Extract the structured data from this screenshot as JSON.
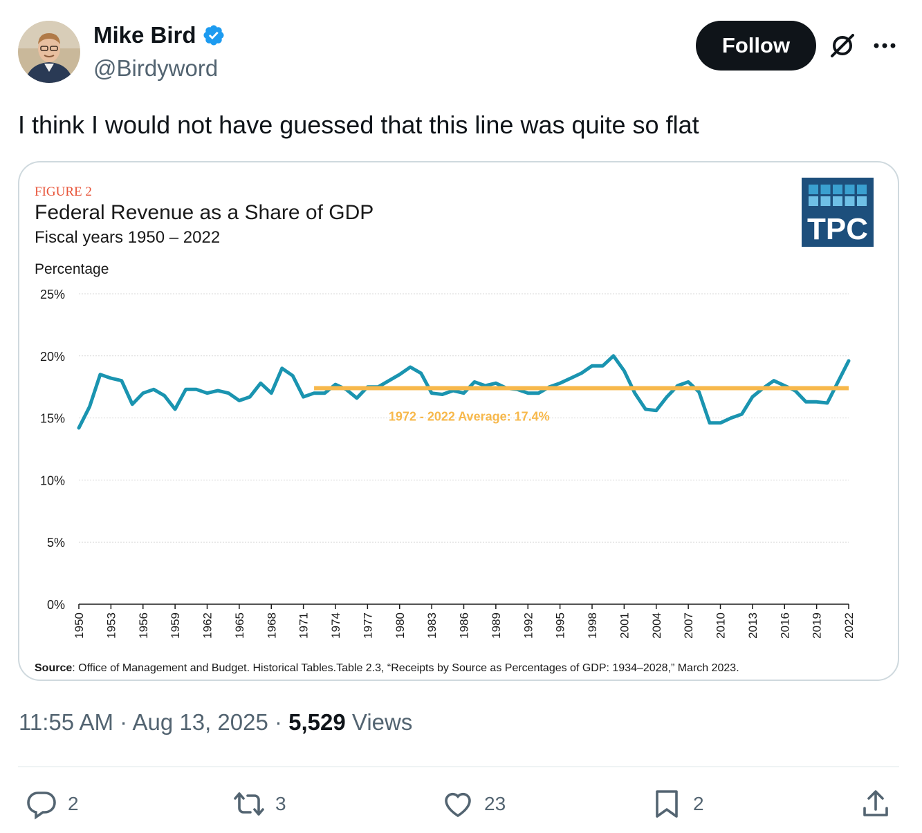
{
  "author": {
    "name": "Mike Bird",
    "handle": "@Birdyword"
  },
  "follow_label": "Follow",
  "tweet_text": "I think I would not have guessed that this line was quite so flat",
  "chart_data": {
    "type": "line",
    "figure_label": "FIGURE 2",
    "title": "Federal Revenue as a Share of GDP",
    "subtitle": "Fiscal years 1950 – 2022",
    "ylabel": "Percentage",
    "logo_text": "TPC",
    "ylim": [
      0,
      25
    ],
    "y_ticks": [
      "0%",
      "5%",
      "10%",
      "15%",
      "20%",
      "25%"
    ],
    "x_ticks": [
      "1950",
      "1953",
      "1956",
      "1959",
      "1962",
      "1965",
      "1968",
      "1971",
      "1974",
      "1977",
      "1980",
      "1983",
      "1986",
      "1989",
      "1992",
      "1995",
      "1998",
      "2001",
      "2004",
      "2007",
      "2010",
      "2013",
      "2016",
      "2019",
      "2022"
    ],
    "x": [
      1950,
      1951,
      1952,
      1953,
      1954,
      1955,
      1956,
      1957,
      1958,
      1959,
      1960,
      1961,
      1962,
      1963,
      1964,
      1965,
      1966,
      1967,
      1968,
      1969,
      1970,
      1971,
      1972,
      1973,
      1974,
      1975,
      1976,
      1977,
      1978,
      1979,
      1980,
      1981,
      1982,
      1983,
      1984,
      1985,
      1986,
      1987,
      1988,
      1989,
      1990,
      1991,
      1992,
      1993,
      1994,
      1995,
      1996,
      1997,
      1998,
      1999,
      2000,
      2001,
      2002,
      2003,
      2004,
      2005,
      2006,
      2007,
      2008,
      2009,
      2010,
      2011,
      2012,
      2013,
      2014,
      2015,
      2016,
      2017,
      2018,
      2019,
      2020,
      2021,
      2022
    ],
    "series": [
      {
        "values": [
          14.2,
          15.9,
          18.5,
          18.2,
          18.0,
          16.1,
          17.0,
          17.3,
          16.8,
          15.7,
          17.3,
          17.3,
          17.0,
          17.2,
          17.0,
          16.4,
          16.7,
          17.8,
          17.0,
          19.0,
          18.4,
          16.7,
          17.0,
          17.0,
          17.7,
          17.3,
          16.6,
          17.5,
          17.5,
          18.0,
          18.5,
          19.1,
          18.6,
          17.0,
          16.9,
          17.2,
          17.0,
          17.9,
          17.6,
          17.8,
          17.4,
          17.3,
          17.0,
          17.0,
          17.5,
          17.8,
          18.2,
          18.6,
          19.2,
          19.2,
          20.0,
          18.8,
          17.0,
          15.7,
          15.6,
          16.7,
          17.6,
          17.9,
          17.1,
          14.6,
          14.6,
          15.0,
          15.3,
          16.7,
          17.4,
          18.0,
          17.6,
          17.2,
          16.3,
          16.3,
          16.2,
          17.9,
          19.6
        ]
      }
    ],
    "reference_line": {
      "label": "1972 - 2022 Average: 17.4%",
      "value": 17.4,
      "x_start": 1972,
      "x_end": 2022
    },
    "source_label": "Source",
    "source_text": ": Office of Management and Budget. Historical Tables.Table 2.3, “Receipts by Source as Percentages of GDP: 1934–2028,” March 2023.",
    "colors": {
      "series": "#1a94b0",
      "average": "#f7b84b",
      "figure_label": "#e8553a",
      "logo_bg": "#1d4f7c",
      "grid": "#d9d9d9"
    }
  },
  "timestamp": "11:55 AM · Aug 13, 2025 · ",
  "views_count": "5,529",
  "views_label": " Views",
  "actions": {
    "replies": "2",
    "reposts": "3",
    "likes": "23",
    "bookmarks": "2"
  },
  "colors": {
    "verified": "#1d9bf0",
    "text_primary": "#0f1419",
    "text_secondary": "#536471"
  }
}
